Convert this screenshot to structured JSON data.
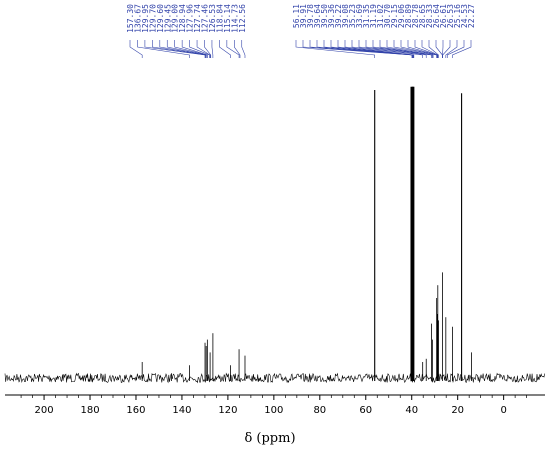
{
  "chart_data": {
    "type": "line",
    "xlabel": "δ (ppm)",
    "xlim": [
      217,
      -18
    ],
    "x_ticks": [
      200,
      180,
      160,
      140,
      120,
      100,
      80,
      60,
      40,
      20,
      0
    ],
    "x_tick_labels": [
      "200",
      "180",
      "160",
      "140",
      "120",
      "100",
      "80",
      "60",
      "40",
      "20",
      "0"
    ],
    "peak_labels": [
      "157.30",
      "136.67",
      "129.95",
      "129.70",
      "129.60",
      "129.45",
      "129.00",
      "128.94",
      "127.96",
      "127.74",
      "127.46",
      "126.53",
      "118.84",
      "115.14",
      "114.73",
      "112.56",
      "56.11",
      "39.91",
      "39.78",
      "39.64",
      "39.50",
      "39.36",
      "39.22",
      "39.08",
      "35.23",
      "33.69",
      "31.35",
      "31.19",
      "31.02",
      "30.70",
      "29.15",
      "29.06",
      "28.89",
      "28.78",
      "28.65",
      "28.33",
      "26.64",
      "26.61",
      "26.53",
      "25.16",
      "24.53",
      "22.27"
    ],
    "peaks": [
      {
        "x": 157.3,
        "y": 0.05
      },
      {
        "x": 144.5,
        "y": 0.015
      },
      {
        "x": 136.67,
        "y": 0.04
      },
      {
        "x": 129.95,
        "y": 0.11
      },
      {
        "x": 129.45,
        "y": 0.1
      },
      {
        "x": 128.94,
        "y": 0.12
      },
      {
        "x": 127.74,
        "y": 0.08
      },
      {
        "x": 126.53,
        "y": 0.14
      },
      {
        "x": 118.84,
        "y": 0.04
      },
      {
        "x": 115.14,
        "y": 0.09
      },
      {
        "x": 112.56,
        "y": 0.07
      },
      {
        "x": 56.11,
        "y": 0.9
      },
      {
        "x": 40.3,
        "y": 0.91
      },
      {
        "x": 39.91,
        "y": 0.91
      },
      {
        "x": 39.64,
        "y": 0.91
      },
      {
        "x": 39.36,
        "y": 0.91
      },
      {
        "x": 39.08,
        "y": 0.91
      },
      {
        "x": 35.23,
        "y": 0.05
      },
      {
        "x": 33.69,
        "y": 0.06
      },
      {
        "x": 31.35,
        "y": 0.17
      },
      {
        "x": 31.02,
        "y": 0.12
      },
      {
        "x": 29.15,
        "y": 0.25
      },
      {
        "x": 28.89,
        "y": 0.2
      },
      {
        "x": 28.65,
        "y": 0.29
      },
      {
        "x": 28.33,
        "y": 0.18
      },
      {
        "x": 26.61,
        "y": 0.33
      },
      {
        "x": 25.16,
        "y": 0.19
      },
      {
        "x": 22.27,
        "y": 0.16
      },
      {
        "x": 18.3,
        "y": 0.89
      },
      {
        "x": 14.0,
        "y": 0.08
      }
    ]
  },
  "colors": {
    "spectrum": "#000000",
    "label_text": "#3344aa",
    "label_leader": "#3344aa"
  }
}
